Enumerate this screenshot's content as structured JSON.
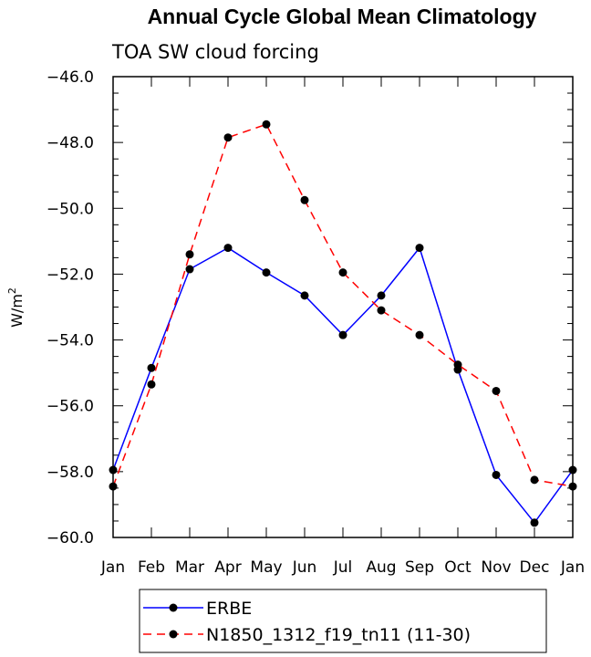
{
  "chart_data": {
    "type": "line",
    "title": "Annual Cycle Global Mean Climatology",
    "subtitle": "TOA SW cloud forcing",
    "ylabel": "W/m",
    "ylabel_superscript": "2",
    "categories": [
      "Jan",
      "Feb",
      "Mar",
      "Apr",
      "May",
      "Jun",
      "Jul",
      "Aug",
      "Sep",
      "Oct",
      "Nov",
      "Dec",
      "Jan"
    ],
    "yticks": [
      "-46.0",
      "-48.0",
      "-50.0",
      "-52.0",
      "-54.0",
      "-56.0",
      "-58.0",
      "-60.0"
    ],
    "ylim": [
      -60,
      -46
    ],
    "legend_position": "bottom",
    "series": [
      {
        "name": "ERBE",
        "color": "#0000ff",
        "dash": "solid",
        "values": [
          -57.95,
          -54.85,
          -51.85,
          -51.2,
          -51.95,
          -52.65,
          -53.85,
          -52.65,
          -51.2,
          -54.9,
          -58.1,
          -59.55,
          -57.95
        ]
      },
      {
        "name": "N1850_1312_f19_tn11 (11-30)",
        "color": "#ff0000",
        "dash": "dashed",
        "values": [
          -58.45,
          -55.35,
          -51.4,
          -47.85,
          -47.45,
          -49.75,
          -51.95,
          -53.1,
          -53.85,
          -54.75,
          -55.55,
          -58.25,
          -58.45
        ]
      }
    ]
  }
}
